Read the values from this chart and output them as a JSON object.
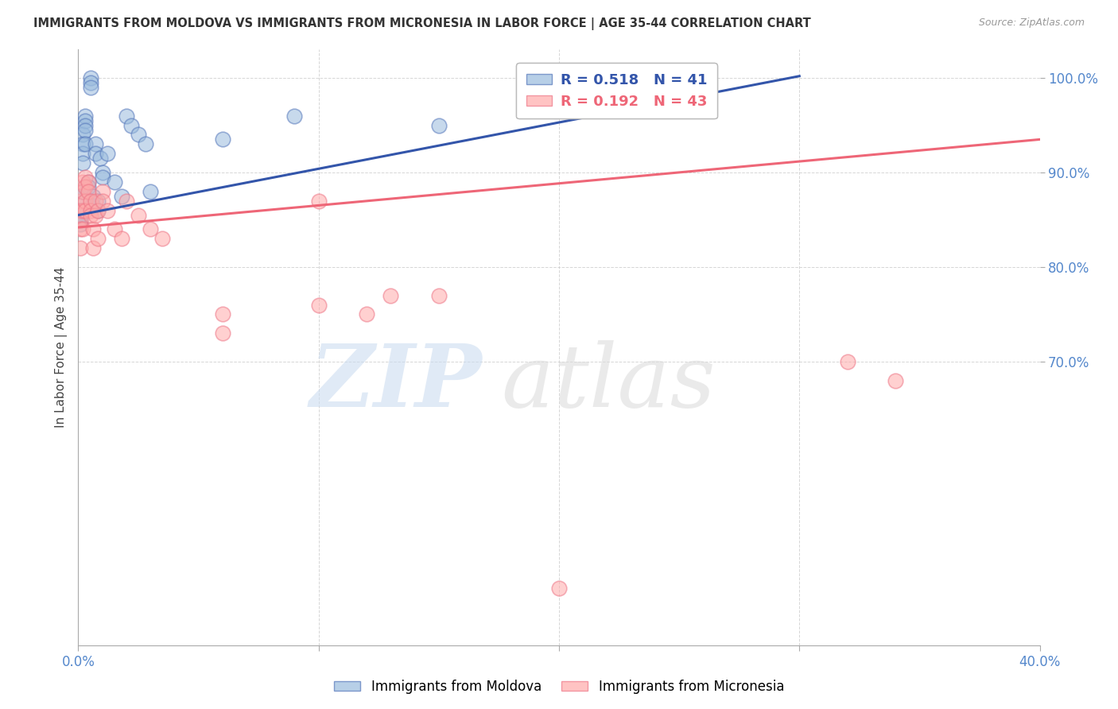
{
  "title": "IMMIGRANTS FROM MOLDOVA VS IMMIGRANTS FROM MICRONESIA IN LABOR FORCE | AGE 35-44 CORRELATION CHART",
  "source": "Source: ZipAtlas.com",
  "ylabel": "In Labor Force | Age 35-44",
  "xlim": [
    0.0,
    0.4
  ],
  "ylim": [
    0.4,
    1.03
  ],
  "xticks": [
    0.0,
    0.1,
    0.2,
    0.3,
    0.4
  ],
  "xtick_labels_shown": [
    "0.0%",
    "",
    "",
    "",
    "40.0%"
  ],
  "yticks": [
    0.7,
    0.8,
    0.9,
    1.0
  ],
  "ytick_labels": [
    "70.0%",
    "80.0%",
    "90.0%",
    "100.0%"
  ],
  "tick_color": "#5588CC",
  "moldova_color": "#99BBDD",
  "micronesia_color": "#FFAAAA",
  "moldova_edge_color": "#5577BB",
  "micronesia_edge_color": "#EE7788",
  "moldova_line_color": "#3355AA",
  "micronesia_line_color": "#EE6677",
  "moldova_R": 0.518,
  "moldova_N": 41,
  "micronesia_R": 0.192,
  "micronesia_N": 43,
  "legend_label_moldova": "Immigrants from Moldova",
  "legend_label_micronesia": "Immigrants from Micronesia",
  "moldova_x": [
    0.001,
    0.001,
    0.001,
    0.001,
    0.001,
    0.002,
    0.002,
    0.002,
    0.002,
    0.002,
    0.003,
    0.003,
    0.003,
    0.003,
    0.003,
    0.004,
    0.004,
    0.005,
    0.005,
    0.005,
    0.006,
    0.006,
    0.007,
    0.007,
    0.008,
    0.008,
    0.009,
    0.01,
    0.01,
    0.012,
    0.015,
    0.018,
    0.02,
    0.022,
    0.025,
    0.028,
    0.03,
    0.06,
    0.09,
    0.15,
    0.25
  ],
  "moldova_y": [
    0.875,
    0.86,
    0.855,
    0.85,
    0.845,
    0.94,
    0.93,
    0.92,
    0.91,
    0.88,
    0.96,
    0.955,
    0.95,
    0.945,
    0.93,
    0.89,
    0.885,
    1.0,
    0.995,
    0.99,
    0.875,
    0.865,
    0.93,
    0.92,
    0.87,
    0.86,
    0.915,
    0.9,
    0.895,
    0.92,
    0.89,
    0.875,
    0.96,
    0.95,
    0.94,
    0.93,
    0.88,
    0.935,
    0.96,
    0.95,
    0.98
  ],
  "micronesia_x": [
    0.001,
    0.001,
    0.001,
    0.001,
    0.001,
    0.002,
    0.002,
    0.002,
    0.002,
    0.003,
    0.003,
    0.003,
    0.003,
    0.004,
    0.004,
    0.005,
    0.005,
    0.005,
    0.006,
    0.006,
    0.007,
    0.007,
    0.008,
    0.008,
    0.01,
    0.01,
    0.012,
    0.015,
    0.018,
    0.02,
    0.025,
    0.03,
    0.035,
    0.06,
    0.06,
    0.1,
    0.13,
    0.15,
    0.2,
    0.32,
    0.34,
    0.1,
    0.12
  ],
  "micronesia_y": [
    0.87,
    0.86,
    0.85,
    0.84,
    0.82,
    0.89,
    0.88,
    0.86,
    0.84,
    0.895,
    0.885,
    0.87,
    0.86,
    0.89,
    0.88,
    0.87,
    0.86,
    0.855,
    0.84,
    0.82,
    0.87,
    0.855,
    0.86,
    0.83,
    0.88,
    0.87,
    0.86,
    0.84,
    0.83,
    0.87,
    0.855,
    0.84,
    0.83,
    0.75,
    0.73,
    0.87,
    0.77,
    0.77,
    0.46,
    0.7,
    0.68,
    0.76,
    0.75
  ],
  "mol_trend_x0": 0.0,
  "mol_trend_y0": 0.855,
  "mol_trend_x1": 0.3,
  "mol_trend_y1": 1.002,
  "mic_trend_x0": 0.0,
  "mic_trend_y0": 0.842,
  "mic_trend_x1": 0.4,
  "mic_trend_y1": 0.935
}
